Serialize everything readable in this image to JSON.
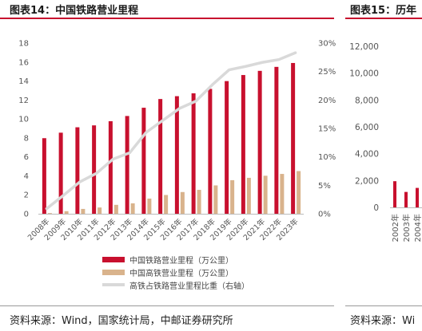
{
  "panels": {
    "left": {
      "title": "图表14：中国铁路营业里程",
      "source": "资料来源：Wind，国家统计局，中邮证券研究所"
    },
    "right": {
      "title": "图表15：历年",
      "source": "资料来源：Wi"
    }
  },
  "colors": {
    "rail": "#c8102e",
    "hsr": "#d9b38c",
    "share": "#d9d9d9",
    "accent": "#c8102e"
  },
  "chart_data": [
    {
      "type": "bar",
      "categories": [
        "2008年",
        "2009年",
        "2010年",
        "2011年",
        "2012年",
        "2013年",
        "2014年",
        "2015年",
        "2016年",
        "2017年",
        "2018年",
        "2019年",
        "2020年",
        "2021年",
        "2022年",
        "2023年"
      ],
      "series": [
        {
          "name": "中国铁路营业里程（万公里）",
          "axis": "left",
          "values": [
            7.97,
            8.55,
            9.12,
            9.32,
            9.76,
            10.31,
            11.18,
            12.1,
            12.4,
            12.7,
            13.17,
            13.99,
            14.63,
            15.07,
            15.49,
            15.9
          ]
        },
        {
          "name": "中国高铁营业里程（万公里）",
          "axis": "left",
          "values": [
            0.07,
            0.27,
            0.51,
            0.66,
            0.94,
            1.1,
            1.6,
            1.98,
            2.29,
            2.52,
            2.99,
            3.54,
            3.79,
            4.01,
            4.2,
            4.5
          ]
        },
        {
          "name": "高铁占铁路营业里程比重（右轴）",
          "type": "line",
          "axis": "right",
          "values": [
            0.009,
            0.032,
            0.056,
            0.071,
            0.096,
            0.107,
            0.143,
            0.164,
            0.185,
            0.198,
            0.227,
            0.253,
            0.259,
            0.266,
            0.271,
            0.283
          ]
        }
      ],
      "y_left": {
        "min": 0,
        "max": 18,
        "ticks": [
          "0",
          "2",
          "4",
          "6",
          "8",
          "10",
          "12",
          "14",
          "16",
          "18"
        ]
      },
      "y_right": {
        "min": 0,
        "max": 0.3,
        "ticks": [
          "0%",
          "5%",
          "10%",
          "15%",
          "20%",
          "25%",
          "30%"
        ]
      },
      "grid": false,
      "legend": "bottom"
    },
    {
      "type": "bar",
      "categories": [
        "2002年",
        "2003年",
        "2004年"
      ],
      "series": [
        {
          "values": [
            1950,
            1150,
            1450
          ]
        }
      ],
      "y_left": {
        "min": 0,
        "max": 12000,
        "ticks": [
          "0",
          "2,000",
          "4,000",
          "6,000",
          "8,000",
          "10,000",
          "12,000"
        ]
      },
      "grid": false
    }
  ]
}
